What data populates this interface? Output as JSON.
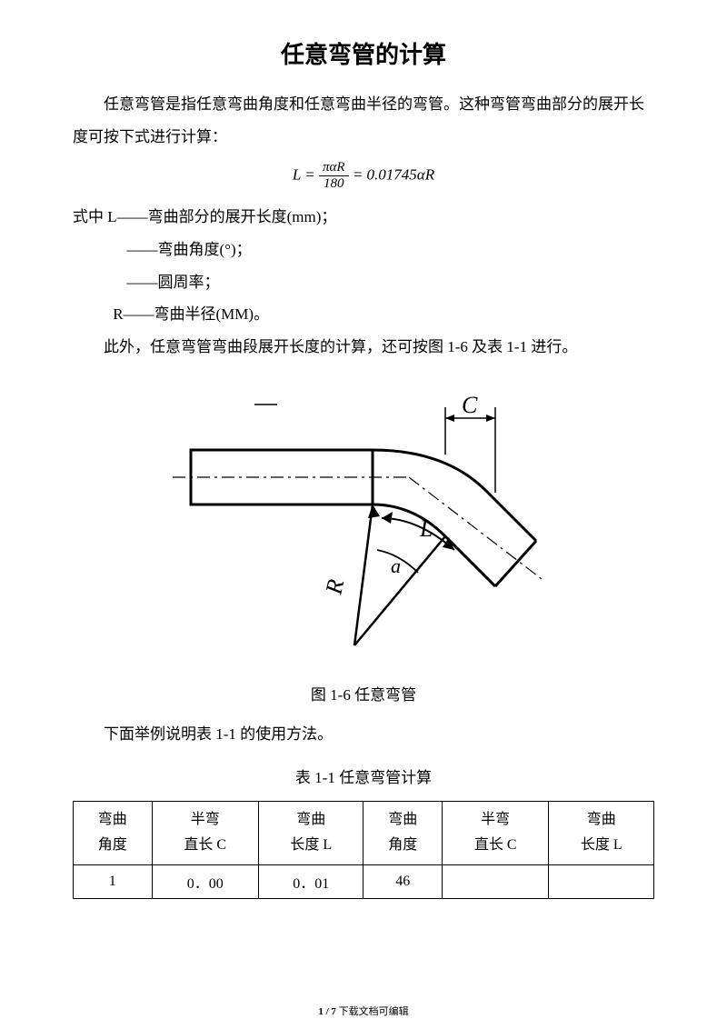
{
  "title": "任意弯管的计算",
  "intro": "任意弯管是指任意弯曲角度和任意弯曲半径的弯管。这种弯管弯曲部分的展开长度可按下式进行计算：",
  "formula": {
    "lhs": "L",
    "numerator": "παR",
    "denominator": "180",
    "rhs": "= 0.01745αR"
  },
  "defs": {
    "lead": "式中 L——弯曲部分的展开长度(mm)；",
    "alpha": "——弯曲角度(°)；",
    "pi": "——圆周率；",
    "r": "R——弯曲半径(MM)。"
  },
  "note": "此外，任意弯管弯曲段展开长度的计算，还可按图 1-6 及表 1-1 进行。",
  "figure": {
    "caption": "图 1-6 任意弯管",
    "labels": {
      "C": "C",
      "L": "L",
      "R": "R",
      "a": "a"
    },
    "style": {
      "stroke": "#000000",
      "stroke_main": 3,
      "stroke_thin": 1.5,
      "font_family": "Times New Roman",
      "font_style": "italic"
    }
  },
  "example_lead": "下面举例说明表 1-1 的使用方法。",
  "table": {
    "caption": "表 1-1 任意弯管计算",
    "headers": [
      "弯曲\n角度",
      "半弯\n直长 C",
      "弯曲\n长度 L",
      "弯曲\n角度",
      "半弯\n直长 C",
      "弯曲\n长度 L"
    ],
    "rows": [
      [
        "1",
        "0．00",
        "0．01",
        "46",
        "",
        ""
      ]
    ]
  },
  "footer": {
    "page": "1 / 7",
    "tail": " 下载文档可编辑"
  }
}
